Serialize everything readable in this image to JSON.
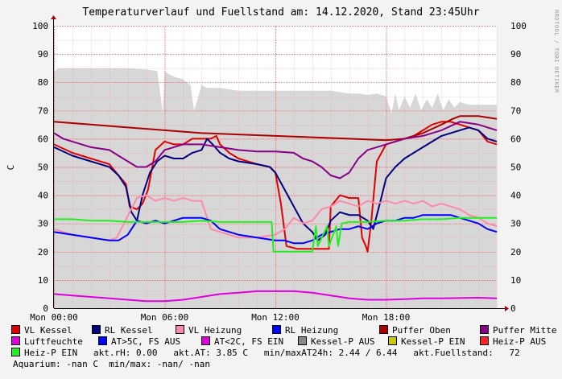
{
  "title": "Temperaturverlauf und Fuellstand am: 14.12.2020, Stand 23:45Uhr",
  "watermark": "RRDTOOL / TOBI OETIKER",
  "chart_data": {
    "type": "line",
    "ylabel": "C",
    "ylim": [
      0,
      100
    ],
    "yticks": [
      0,
      10,
      20,
      30,
      40,
      50,
      60,
      70,
      80,
      90,
      100
    ],
    "xlim": [
      0,
      24
    ],
    "xticks": [
      {
        "h": 0,
        "label": "Mon 00:00"
      },
      {
        "h": 6,
        "label": "Mon 06:00"
      },
      {
        "h": 12,
        "label": "Mon 12:00"
      },
      {
        "h": 18,
        "label": "Mon 18:00"
      }
    ],
    "grid": true,
    "area": {
      "name": "Fuellstand",
      "color": "#d7d7d7",
      "x": [
        0,
        0.3,
        1,
        2,
        3,
        4,
        5,
        5.6,
        5.9,
        6.0,
        6.2,
        6.5,
        7,
        7.4,
        7.6,
        8,
        8.3,
        8.5,
        9,
        10,
        11,
        12,
        13,
        14,
        15,
        16,
        16.5,
        17,
        17.5,
        18,
        18.3,
        18.5,
        18.7,
        19,
        19.3,
        19.6,
        19.9,
        20.2,
        20.5,
        20.8,
        21.1,
        21.4,
        21.7,
        22,
        22.5,
        23,
        23.5,
        24
      ],
      "y": [
        84,
        85,
        85,
        85,
        85,
        85,
        84.5,
        84,
        69,
        84,
        83,
        82,
        81,
        79,
        70,
        79,
        78,
        78,
        78,
        77,
        77,
        77,
        77,
        77,
        77,
        76,
        76,
        75.5,
        76,
        75,
        69,
        76,
        70,
        75,
        71,
        76,
        70,
        74,
        71,
        76,
        70,
        74,
        71,
        73,
        72,
        72,
        72,
        72
      ]
    },
    "series": [
      {
        "name": "VL Kessel",
        "color": "#e00000",
        "x": [
          0,
          1,
          2,
          3,
          3.5,
          3.9,
          4.1,
          4.5,
          4.8,
          5.1,
          5.5,
          6,
          6.5,
          7,
          7.5,
          8,
          8.5,
          8.8,
          9,
          9.5,
          10,
          11,
          11.7,
          12,
          12.3,
          12.6,
          13.2,
          14,
          14.3,
          14.6,
          14.9,
          15,
          15.5,
          16,
          16.5,
          16.7,
          16.9,
          17,
          17.2,
          17.5,
          18,
          18.5,
          19,
          19.5,
          20,
          20.5,
          21,
          21.5,
          22,
          22.5,
          23,
          23.5,
          24
        ],
        "y": [
          58,
          55,
          53,
          51,
          47,
          44,
          36,
          35,
          37,
          42,
          56,
          59,
          58,
          58,
          60,
          60,
          60,
          61,
          58,
          55,
          53,
          51,
          50,
          48,
          37,
          22,
          21,
          21,
          21,
          21,
          21,
          36,
          40,
          39,
          39,
          25,
          22,
          20,
          31,
          52,
          58,
          59,
          60,
          61,
          63,
          65,
          66,
          66,
          65,
          64,
          63,
          59,
          58
        ]
      },
      {
        "name": "RL Kessel",
        "color": "#000080",
        "x": [
          0,
          1,
          2,
          3,
          3.5,
          3.9,
          4.2,
          4.5,
          4.8,
          5.2,
          5.6,
          6,
          6.5,
          7,
          7.5,
          8,
          8.3,
          8.6,
          9,
          9.5,
          10,
          11,
          11.7,
          12,
          12.5,
          13,
          13.5,
          14,
          14.3,
          14.7,
          15,
          15.5,
          16,
          16.5,
          17,
          17.3,
          17.7,
          18,
          18.5,
          19,
          19.5,
          20,
          20.5,
          21,
          21.5,
          22,
          22.5,
          23,
          23.5,
          24
        ],
        "y": [
          57,
          54,
          52,
          50,
          47,
          43,
          34,
          31,
          40,
          48,
          52,
          54,
          53,
          53,
          55,
          56,
          60,
          58,
          55,
          53,
          52,
          51,
          50,
          48,
          42,
          36,
          30,
          27,
          24,
          26,
          31,
          34,
          33,
          33,
          31,
          28,
          38,
          46,
          50,
          53,
          55,
          57,
          59,
          61,
          62,
          63,
          64,
          63,
          60,
          59
        ]
      },
      {
        "name": "VL Heizung",
        "color": "#ff88aa",
        "x": [
          0,
          1,
          2,
          3,
          3.4,
          3.8,
          4.1,
          4.5,
          5,
          5.5,
          6,
          6.5,
          7,
          7.5,
          8,
          8.5,
          9,
          9.5,
          10,
          11,
          12,
          12.5,
          13,
          13.5,
          14,
          14.5,
          15,
          15.5,
          16,
          16.5,
          17,
          17.5,
          18,
          18.5,
          19,
          19.5,
          20,
          20.5,
          21,
          21.5,
          22,
          22.5,
          23,
          23.5,
          24
        ],
        "y": [
          28,
          26,
          25,
          24,
          25,
          30,
          34,
          39,
          40,
          38,
          39,
          38,
          39,
          38,
          38,
          28,
          27,
          26,
          25,
          25,
          26,
          28,
          32,
          30,
          31,
          35,
          36,
          38,
          37,
          36,
          38,
          37,
          38,
          37,
          38,
          37,
          38,
          36,
          37,
          36,
          35,
          33,
          32,
          30,
          29
        ]
      },
      {
        "name": "RL Heizung",
        "color": "#0000ff",
        "x": [
          0,
          1,
          2,
          3,
          3.5,
          4,
          4.5,
          5,
          5.5,
          6,
          6.5,
          7,
          7.5,
          8,
          8.5,
          9,
          10,
          11,
          12,
          12.5,
          13,
          13.5,
          14,
          14.5,
          15,
          15.5,
          16,
          16.5,
          17,
          17.5,
          18,
          18.5,
          19,
          19.5,
          20,
          20.5,
          21,
          21.5,
          22,
          22.5,
          23,
          23.5,
          24
        ],
        "y": [
          27,
          26,
          25,
          24,
          24,
          26,
          31,
          30,
          31,
          30,
          31,
          32,
          32,
          32,
          31,
          28,
          26,
          25,
          24,
          24,
          23,
          23,
          24,
          26,
          27,
          28,
          28,
          29,
          28,
          30,
          31,
          31,
          32,
          32,
          33,
          33,
          33,
          33,
          32,
          31,
          30,
          28,
          27
        ]
      },
      {
        "name": "Puffer Oben",
        "color": "#aa0000",
        "x": [
          0,
          2,
          4,
          6,
          8,
          10,
          12,
          14,
          16,
          18,
          19,
          20,
          21,
          21.6,
          22,
          23,
          24
        ],
        "y": [
          66,
          65,
          64,
          63,
          62,
          61.5,
          61,
          60.5,
          60,
          59.5,
          60,
          62,
          65,
          67,
          68,
          68,
          67
        ]
      },
      {
        "name": "Puffer Mitte",
        "color": "#880088",
        "x": [
          0,
          0.5,
          1,
          2,
          3,
          3.5,
          4,
          4.5,
          5,
          5.5,
          6,
          7,
          8,
          9,
          10,
          11,
          12,
          13,
          13.5,
          14,
          14.5,
          15,
          15.5,
          16,
          16.5,
          17,
          18,
          19,
          20,
          21,
          22,
          23,
          24
        ],
        "y": [
          62,
          60,
          59,
          57,
          56,
          54,
          52,
          50,
          50,
          52,
          56,
          58,
          58,
          57,
          56,
          55.5,
          55.5,
          55,
          53,
          52,
          50,
          47,
          46,
          48,
          53,
          56,
          58,
          60,
          61,
          63,
          66,
          65,
          63
        ]
      },
      {
        "name": "Luftfeuchte",
        "color": "#dd00dd",
        "x": [
          0,
          1,
          2,
          3,
          4,
          5,
          6,
          7,
          8,
          9,
          10,
          11,
          12,
          13,
          14,
          15,
          16,
          17,
          18,
          19,
          20,
          21,
          22,
          23,
          24
        ],
        "y": [
          5,
          4.5,
          4,
          3.5,
          3,
          2.5,
          2.5,
          3,
          4,
          5,
          5.5,
          6,
          6,
          6,
          5.5,
          4.5,
          3.5,
          3,
          3,
          3.2,
          3.5,
          3.5,
          3.6,
          3.7,
          3.5
        ]
      },
      {
        "name": "Heiz-P EIN",
        "color": "#22ee22",
        "x": [
          0,
          1,
          2,
          3,
          4,
          5,
          6,
          7,
          8,
          9,
          10,
          11,
          11.8,
          11.9,
          12,
          13,
          14,
          14.2,
          14.3,
          14.8,
          14.9,
          15.3,
          15.4,
          15.6,
          16,
          17,
          18,
          19,
          20,
          21,
          22,
          23,
          24
        ],
        "y": [
          31.5,
          31.5,
          31,
          31,
          30.5,
          30.5,
          30.5,
          30.5,
          31,
          30.5,
          30.5,
          30.5,
          30.5,
          20,
          20,
          20,
          20,
          29,
          22,
          29,
          22,
          29,
          22,
          30,
          30.5,
          30.5,
          31,
          31,
          31.5,
          31.5,
          32,
          32,
          32
        ]
      }
    ]
  },
  "legend": {
    "row1": [
      {
        "label": "VL Kessel",
        "color": "#e00000"
      },
      {
        "label": "RL Kessel",
        "color": "#000080"
      },
      {
        "label": "VL Heizung",
        "color": "#ff88aa"
      },
      {
        "label": "RL Heizung",
        "color": "#0000ff"
      },
      {
        "label": "Puffer Oben",
        "color": "#aa0000"
      },
      {
        "label": "Puffer Mitte",
        "color": "#880088"
      }
    ],
    "row2": [
      {
        "label": "Luftfeuchte",
        "color": "#dd00dd"
      },
      {
        "label": "AT>5C, FS AUS",
        "color": "#0000ff"
      },
      {
        "label": "AT<2C, FS EIN",
        "color": "#dd00dd"
      },
      {
        "label": "Kessel-P AUS",
        "color": "#888888"
      },
      {
        "label": "Kessel-P EIN",
        "color": "#c8c800"
      },
      {
        "label": "Heiz-P AUS",
        "color": "#ff2222"
      }
    ],
    "row3_swatch": {
      "label": "Heiz-P EIN",
      "color": "#22ee22"
    },
    "row3_info": "akt.rH: 0.00   akt.AT: 3.85 C   min/maxAT24h: 2.44 / 6.44   akt.Fuellstand:   72",
    "row4_info": "Aquarium: -nan C  min/max: -nan/ -nan"
  }
}
